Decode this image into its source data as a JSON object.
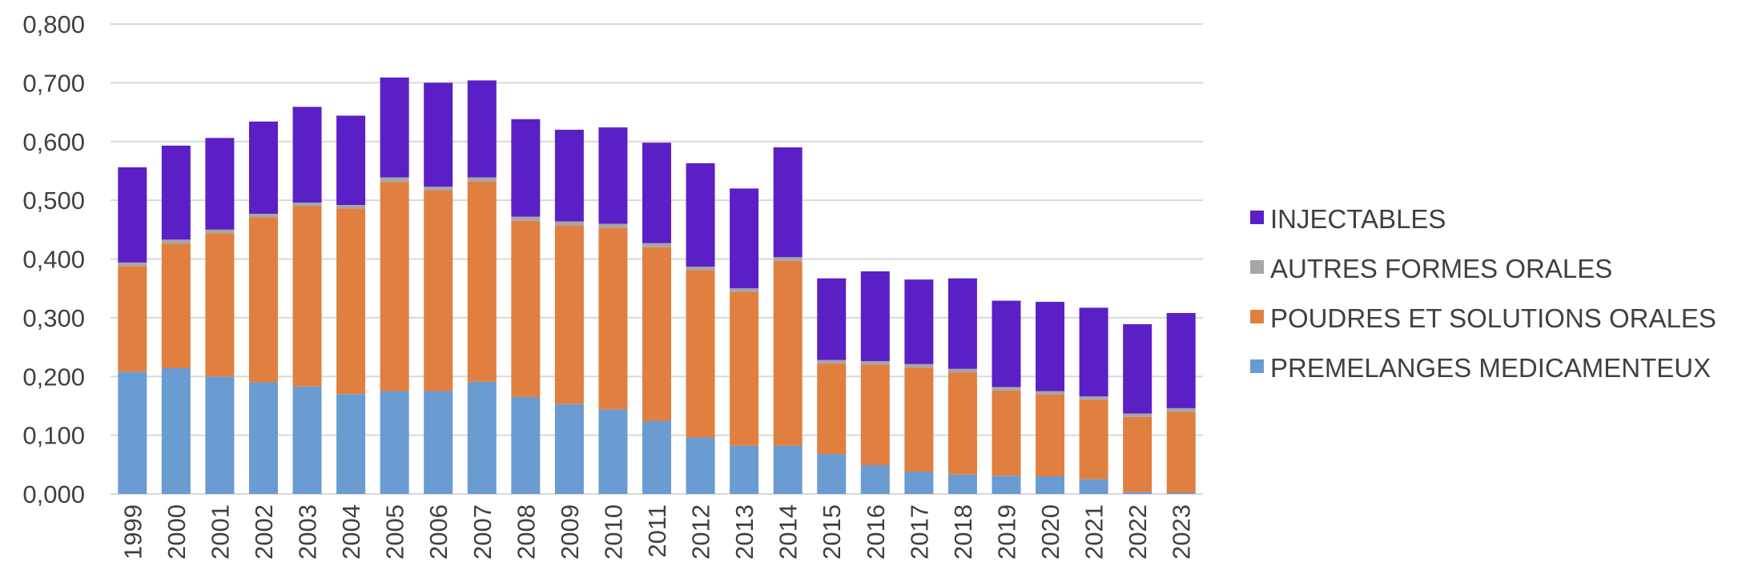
{
  "chart_data": {
    "type": "bar",
    "stacked": true,
    "categories": [
      "1999",
      "2000",
      "2001",
      "2002",
      "2003",
      "2004",
      "2005",
      "2006",
      "2007",
      "2008",
      "2009",
      "2010",
      "2011",
      "2012",
      "2013",
      "2014",
      "2015",
      "2016",
      "2017",
      "2018",
      "2019",
      "2020",
      "2021",
      "2022",
      "2023"
    ],
    "ylim": [
      0,
      0.8
    ],
    "yticks": [
      "0,000",
      "0,100",
      "0,200",
      "0,300",
      "0,400",
      "0,500",
      "0,600",
      "0,700",
      "0,800"
    ],
    "grid": true,
    "legend_position": "right",
    "series": [
      {
        "name": "PREMELANGES MEDICAMENTEUX",
        "color": "#6a9bd1",
        "values": [
          0.208,
          0.214,
          0.2,
          0.19,
          0.183,
          0.17,
          0.175,
          0.175,
          0.191,
          0.165,
          0.153,
          0.144,
          0.124,
          0.096,
          0.082,
          0.082,
          0.068,
          0.049,
          0.038,
          0.033,
          0.031,
          0.03,
          0.025,
          0.003,
          0.002
        ]
      },
      {
        "name": "POUDRES ET SOLUTIONS ORALES",
        "color": "#e07f40",
        "values": [
          0.18,
          0.212,
          0.244,
          0.281,
          0.307,
          0.316,
          0.356,
          0.342,
          0.341,
          0.3,
          0.304,
          0.309,
          0.296,
          0.285,
          0.262,
          0.315,
          0.154,
          0.171,
          0.177,
          0.174,
          0.145,
          0.139,
          0.135,
          0.128,
          0.138
        ]
      },
      {
        "name": "AUTRES FORMES ORALES",
        "color": "#a6a6a6",
        "values": [
          0.006,
          0.007,
          0.006,
          0.006,
          0.006,
          0.006,
          0.008,
          0.006,
          0.007,
          0.007,
          0.007,
          0.007,
          0.007,
          0.006,
          0.006,
          0.006,
          0.006,
          0.006,
          0.006,
          0.006,
          0.006,
          0.006,
          0.006,
          0.006,
          0.006
        ]
      },
      {
        "name": "INJECTABLES",
        "color": "#5b1fc6",
        "values": [
          0.162,
          0.16,
          0.156,
          0.157,
          0.163,
          0.152,
          0.17,
          0.177,
          0.165,
          0.166,
          0.156,
          0.164,
          0.171,
          0.176,
          0.17,
          0.187,
          0.139,
          0.153,
          0.144,
          0.154,
          0.147,
          0.152,
          0.151,
          0.152,
          0.162
        ]
      }
    ]
  }
}
